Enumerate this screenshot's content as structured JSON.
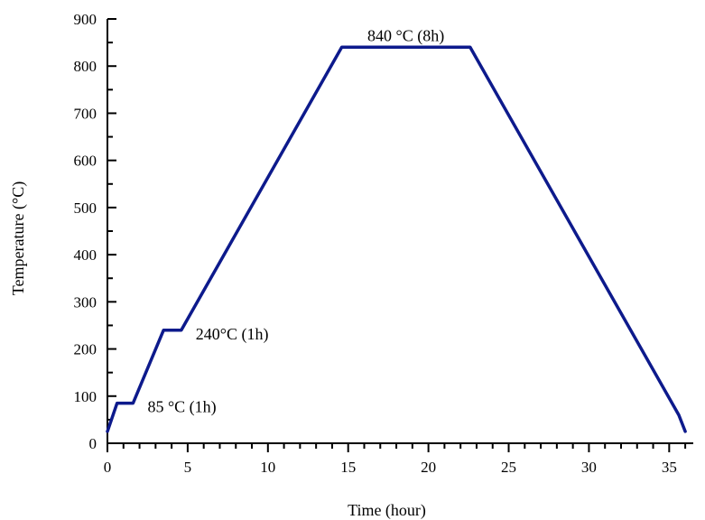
{
  "chart_data": {
    "type": "line",
    "title": "",
    "xlabel": "Time (hour)",
    "ylabel": "Temperature (°C)",
    "xlim": [
      0,
      36.5
    ],
    "ylim": [
      0,
      900
    ],
    "xticks": [
      0,
      5,
      10,
      15,
      20,
      25,
      30,
      35
    ],
    "yticks": [
      0,
      100,
      200,
      300,
      400,
      500,
      600,
      700,
      800,
      900
    ],
    "grid": false,
    "series": [
      {
        "name": "",
        "color": "#0d1a8c",
        "x": [
          0,
          0.6,
          1.6,
          3.5,
          4.6,
          14.6,
          22.6,
          35.6,
          36
        ],
        "y": [
          25,
          85,
          85,
          240,
          240,
          840,
          840,
          60,
          25
        ]
      }
    ],
    "annotations": [
      {
        "text": "840 °C (8h)",
        "x": 16.2,
        "y": 865
      },
      {
        "text": "240°C (1h)",
        "x": 5.5,
        "y": 232
      },
      {
        "text": "85 °C (1h)",
        "x": 2.5,
        "y": 78
      }
    ]
  }
}
